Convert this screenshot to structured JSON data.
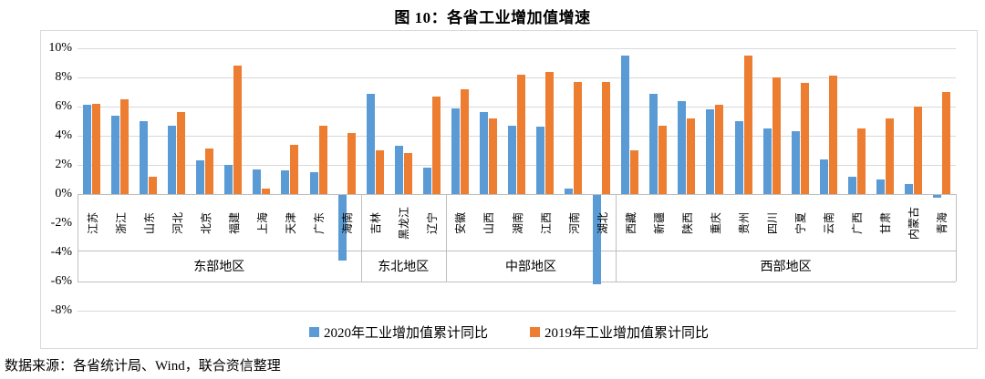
{
  "title": "图 10：各省工业增加值增速",
  "source_note": "数据来源：各省统计局、Wind，联合资信整理",
  "colors": {
    "series_2020": "#5B9BD5",
    "series_2019": "#ED7D31",
    "gridline": "#D9D9D9",
    "band_line": "#BFBFBF",
    "text": "#000000"
  },
  "chart_data": {
    "type": "bar",
    "title": "图 10：各省工业增加值增速",
    "ylabel": "",
    "xlabel": "",
    "ylim": [
      -8,
      10
    ],
    "grid": true,
    "legend_position": "bottom",
    "y_tick_values": [
      10,
      8,
      6,
      4,
      2,
      0,
      -2,
      -4,
      -6,
      -8
    ],
    "y_tick_labels": [
      "10%",
      "8%",
      "6%",
      "4%",
      "2%",
      "0%",
      "-2%",
      "-4%",
      "-6%",
      "-8%"
    ],
    "categories": [
      "江苏",
      "浙江",
      "山东",
      "河北",
      "北京",
      "福建",
      "上海",
      "天津",
      "广东",
      "海南",
      "吉林",
      "黑龙江",
      "辽宁",
      "安徽",
      "山西",
      "湖南",
      "江西",
      "河南",
      "湖北",
      "西藏",
      "新疆",
      "陕西",
      "重庆",
      "贵州",
      "四川",
      "宁夏",
      "云南",
      "广西",
      "甘肃",
      "内蒙古",
      "青海"
    ],
    "groups": [
      {
        "label": "东部地区",
        "count": 10
      },
      {
        "label": "东北地区",
        "count": 3
      },
      {
        "label": "中部地区",
        "count": 6
      },
      {
        "label": "西部地区",
        "count": 12
      }
    ],
    "series": [
      {
        "name": "2020年工业增加值累计同比",
        "color": "#5B9BD5",
        "values": [
          6.1,
          5.4,
          5.0,
          4.7,
          2.3,
          2.0,
          1.7,
          1.6,
          1.5,
          -4.5,
          6.9,
          3.3,
          1.8,
          5.9,
          5.6,
          4.7,
          4.6,
          0.4,
          -6.1,
          9.5,
          6.9,
          6.4,
          5.8,
          5.0,
          4.5,
          4.3,
          2.4,
          1.2,
          1.0,
          0.7,
          -0.2
        ]
      },
      {
        "name": "2019年工业增加值累计同比",
        "color": "#ED7D31",
        "values": [
          6.2,
          6.5,
          1.2,
          5.6,
          3.1,
          8.8,
          0.4,
          3.4,
          4.7,
          4.2,
          3.0,
          2.8,
          6.7,
          7.2,
          5.2,
          8.2,
          8.4,
          7.7,
          7.7,
          3.0,
          4.7,
          5.2,
          6.1,
          9.5,
          8.0,
          7.6,
          8.1,
          4.5,
          5.2,
          6.0,
          7.0
        ]
      }
    ]
  }
}
